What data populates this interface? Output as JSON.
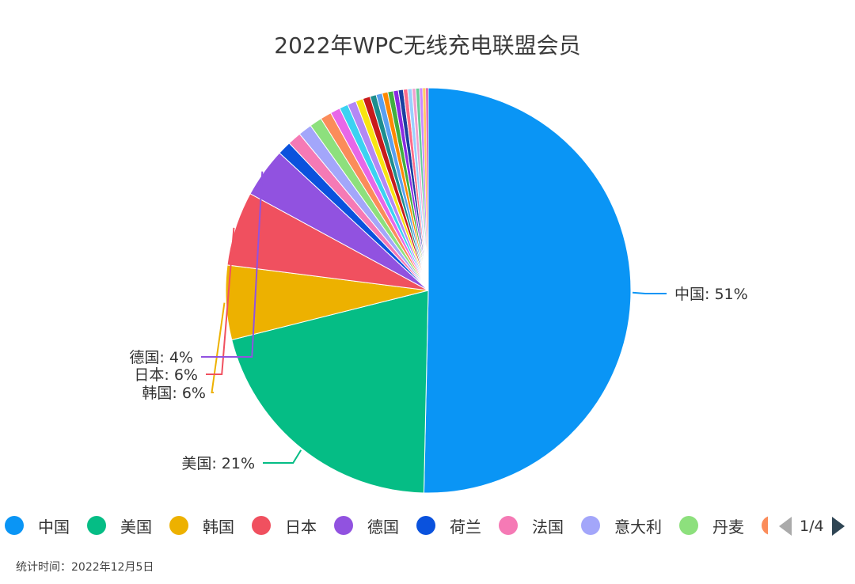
{
  "chart_data": {
    "type": "pie",
    "title": "2022年WPC无线充电联盟会员",
    "slices": [
      {
        "name": "中国",
        "value": 51,
        "color": "#0a95f5",
        "label": "中国: 51%"
      },
      {
        "name": "美国",
        "value": 21,
        "color": "#05bd85",
        "label": "美国: 21%"
      },
      {
        "name": "韩国",
        "value": 6,
        "color": "#edb100",
        "label": "韩国: 6%"
      },
      {
        "name": "日本",
        "value": 6,
        "color": "#f0505f",
        "label": "日本: 6%"
      },
      {
        "name": "德国",
        "value": 4,
        "color": "#9152e0",
        "label": "德国: 4%"
      },
      {
        "name": "荷兰",
        "value": 1.1,
        "color": "#0a52dd"
      },
      {
        "name": "法国",
        "value": 1.1,
        "color": "#f57ab5"
      },
      {
        "name": "意大利",
        "value": 1.1,
        "color": "#a3a6fa"
      },
      {
        "name": "丹麦",
        "value": 1.0,
        "color": "#8de07d"
      },
      {
        "value": 0.9,
        "color": "#fb8c5a"
      },
      {
        "value": 0.8,
        "color": "#e867e8"
      },
      {
        "value": 0.7,
        "color": "#3bd2f2"
      },
      {
        "value": 0.7,
        "color": "#b388f5"
      },
      {
        "value": 0.6,
        "color": "#f8e510"
      },
      {
        "value": 0.6,
        "color": "#c81b1b"
      },
      {
        "value": 0.5,
        "color": "#1d8e8e"
      },
      {
        "value": 0.5,
        "color": "#5aa0f0"
      },
      {
        "value": 0.45,
        "color": "#ff8800"
      },
      {
        "value": 0.45,
        "color": "#40b040"
      },
      {
        "value": 0.4,
        "color": "#8a2be2"
      },
      {
        "value": 0.4,
        "color": "#1a3fa0"
      },
      {
        "value": 0.35,
        "color": "#ff6a88"
      },
      {
        "value": 0.35,
        "color": "#9ad0ff"
      },
      {
        "value": 0.3,
        "color": "#f0a0d0"
      },
      {
        "value": 0.3,
        "color": "#66cc99"
      },
      {
        "value": 0.25,
        "color": "#cc88ff"
      },
      {
        "value": 0.25,
        "color": "#ffcc66"
      },
      {
        "value": 0.2,
        "color": "#dd55aa"
      }
    ]
  },
  "legend": {
    "items": [
      {
        "name": "中国",
        "color": "#0a95f5"
      },
      {
        "name": "美国",
        "color": "#05bd85"
      },
      {
        "name": "韩国",
        "color": "#edb100"
      },
      {
        "name": "日本",
        "color": "#f0505f"
      },
      {
        "name": "德国",
        "color": "#9152e0"
      },
      {
        "name": "荷兰",
        "color": "#0a52dd"
      },
      {
        "name": "法国",
        "color": "#f57ab5"
      },
      {
        "name": "意大利",
        "color": "#a3a6fa"
      },
      {
        "name": "丹麦",
        "color": "#8de07d"
      },
      {
        "name": "",
        "color": "#fb8c5a"
      }
    ],
    "pager": "1/4"
  },
  "footnote": "统计时间：2022年12月5日"
}
